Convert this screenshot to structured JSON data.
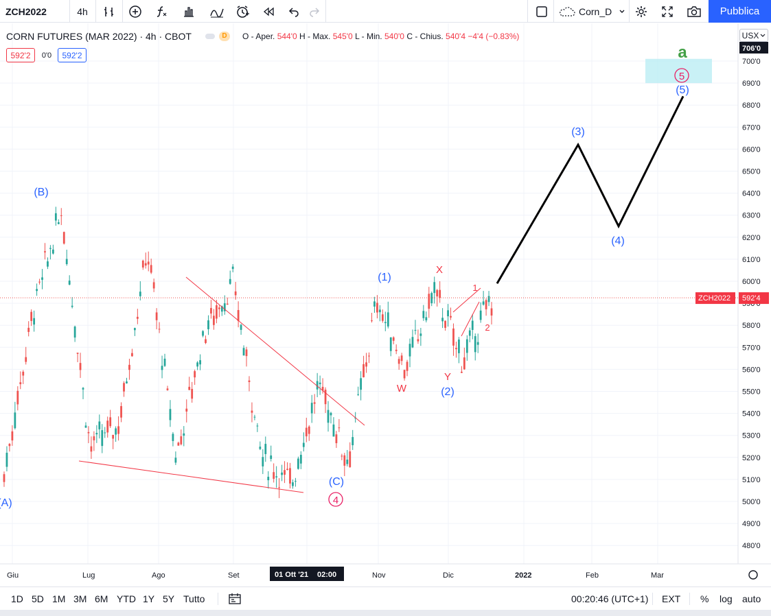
{
  "toolbar": {
    "symbol": "ZCH2022",
    "interval": "4h",
    "indicator_label": "Corn_D",
    "publish_label": "Pubblica"
  },
  "legend": {
    "title": "CORN FUTURES (MAR 2022) · 4h · CBOT",
    "badge_d": "D",
    "open_label": "O - Aper.",
    "open_value": "544'0",
    "high_label": "H - Max.",
    "high_value": "545'0",
    "low_label": "L - Min.",
    "low_value": "540'0",
    "close_label": "C - Chius.",
    "close_value": "540'4",
    "change_value": "−4'4 (−0.83%)",
    "bid_price": "592'2",
    "spread": "0'0",
    "ask_price": "592'2"
  },
  "price_scale": {
    "currency": "USX",
    "top_label": "706'0",
    "ticks": [
      "700'0",
      "690'0",
      "680'0",
      "670'0",
      "660'0",
      "650'0",
      "640'0",
      "630'0",
      "620'0",
      "610'0",
      "600'0",
      "590'0",
      "580'0",
      "570'0",
      "560'0",
      "550'0",
      "540'0",
      "530'0",
      "520'0",
      "510'0",
      "500'0",
      "490'0",
      "480'0"
    ],
    "last_symbol": "ZCH2022",
    "last_price": "592'4"
  },
  "time_axis": {
    "labels": [
      "Giu",
      "Lug",
      "Ago",
      "Set",
      "Nov",
      "Dic",
      "2022",
      "Feb",
      "Mar"
    ],
    "crosshair_date": "01 Ott '21",
    "crosshair_time": "02:00"
  },
  "annotations": {
    "wave_a_green": "a",
    "wave_5_circled_top": "5",
    "wave_5": "(5)",
    "wave_3": "(3)",
    "wave_4": "(4)",
    "wave_B": "(B)",
    "wave_A": "(A)",
    "wave_C": "(C)",
    "wave_4_circled": "4",
    "wave_1": "(1)",
    "wave_2": "(2)",
    "sub_X": "X",
    "sub_W": "W",
    "sub_Y": "Y",
    "sub_1": "1",
    "sub_2": "2"
  },
  "bottom": {
    "ranges": [
      "1D",
      "5D",
      "1M",
      "3M",
      "6M",
      "YTD",
      "1Y",
      "5Y",
      "Tutto"
    ],
    "clock": "00:20:46 (UTC+1)",
    "ext": "EXT",
    "percent": "%",
    "log": "log",
    "auto": "auto"
  },
  "colors": {
    "up": "#26a69a",
    "down": "#ef5350",
    "wave_blue": "#2962ff",
    "wave_red": "#f23645",
    "wave_pink": "#e91e63",
    "wave_green": "#43a047",
    "target_box": "#b2ebf2",
    "accent": "#2962ff"
  },
  "chart_data": {
    "type": "candlestick",
    "instrument": "CORN FUTURES (MAR 2022)",
    "timeframe": "4h",
    "ylim": [
      476,
      706
    ],
    "x_labels": [
      "Giu",
      "Lug",
      "Ago",
      "Set",
      "Ott",
      "Nov",
      "Dic",
      "2022",
      "Feb",
      "Mar"
    ],
    "price_path": [
      {
        "date": "Giu",
        "price": 512
      },
      {
        "date": "Giu mid",
        "price": 586
      },
      {
        "date": "Giu late",
        "price": 632
      },
      {
        "date": "Lug early",
        "price": 525
      },
      {
        "date": "Lug",
        "price": 535
      },
      {
        "date": "Lug mid",
        "price": 615
      },
      {
        "date": "Lug late",
        "price": 520
      },
      {
        "date": "Ago",
        "price": 578
      },
      {
        "date": "Ago mid",
        "price": 599
      },
      {
        "date": "Set",
        "price": 520
      },
      {
        "date": "Set mid",
        "price": 508
      },
      {
        "date": "Ott",
        "price": 553
      },
      {
        "date": "Ott mid",
        "price": 518
      },
      {
        "date": "Nov early",
        "price": 591
      },
      {
        "date": "Nov",
        "price": 560
      },
      {
        "date": "Nov late",
        "price": 596
      },
      {
        "date": "Dic",
        "price": 564
      },
      {
        "date": "Dic mid",
        "price": 592.5
      }
    ],
    "projection": [
      {
        "date": "Dic mid",
        "price": 599
      },
      {
        "date": "Gen",
        "price": 662
      },
      {
        "date": "Feb",
        "price": 625
      },
      {
        "date": "Mar",
        "price": 684
      }
    ],
    "last_price": 592.5,
    "target_zone": [
      690,
      701
    ]
  }
}
